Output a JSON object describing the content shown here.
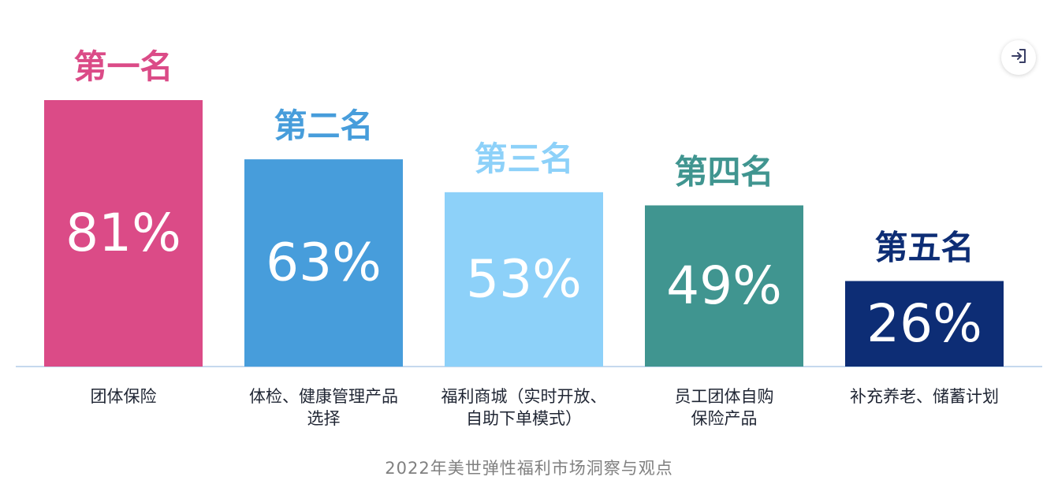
{
  "chart_data": {
    "type": "bar",
    "categories": [
      [
        "团体保险"
      ],
      [
        "体检、健康管理产品",
        "选择"
      ],
      [
        "福利商城（实时开放、",
        "自助下单模式）"
      ],
      [
        "员工团体自购",
        "保险产品"
      ],
      [
        "补充养老、储蓄计划"
      ]
    ],
    "values": [
      81,
      63,
      53,
      49,
      26
    ],
    "value_labels": [
      "81%",
      "63%",
      "53%",
      "49%",
      "26%"
    ],
    "rank_labels": [
      "第一名",
      "第二名",
      "第三名",
      "第四名",
      "第五名"
    ],
    "colors": [
      "#DB4B87",
      "#479DDB",
      "#8DD1F9",
      "#409590",
      "#0D2D75"
    ],
    "ylim": [
      0,
      81
    ],
    "grid": false,
    "baseline_color": "#C5D9EE"
  },
  "caption": "2022年美世弹性福利市场洞察与观点",
  "exit_icon": "exit-icon"
}
